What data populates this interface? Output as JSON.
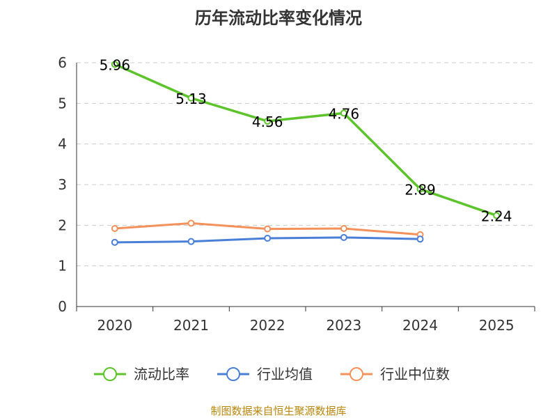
{
  "chart_data": {
    "type": "line",
    "title": "历年流动比率变化情况",
    "categories": [
      "2020",
      "2021",
      "2022",
      "2023",
      "2024",
      "2025"
    ],
    "ylim": [
      0,
      6
    ],
    "yticks": [
      "0",
      "1",
      "2",
      "3",
      "4",
      "5",
      "6"
    ],
    "grid": true,
    "legend_position": "bottom",
    "series": [
      {
        "name": "流动比率",
        "color": "#5cc42a",
        "values": [
          5.96,
          5.13,
          4.56,
          4.76,
          2.89,
          2.24
        ],
        "labels": [
          "5.96",
          "5.13",
          "4.56",
          "4.76",
          "2.89",
          "2.24"
        ]
      },
      {
        "name": "行业均值",
        "color": "#4a7fd8",
        "values": [
          1.58,
          1.6,
          1.68,
          1.7,
          1.66,
          null
        ]
      },
      {
        "name": "行业中位数",
        "color": "#f4905a",
        "values": [
          1.92,
          2.05,
          1.91,
          1.92,
          1.77,
          null
        ]
      }
    ],
    "source": "制图数据来自恒生聚源数据库"
  }
}
